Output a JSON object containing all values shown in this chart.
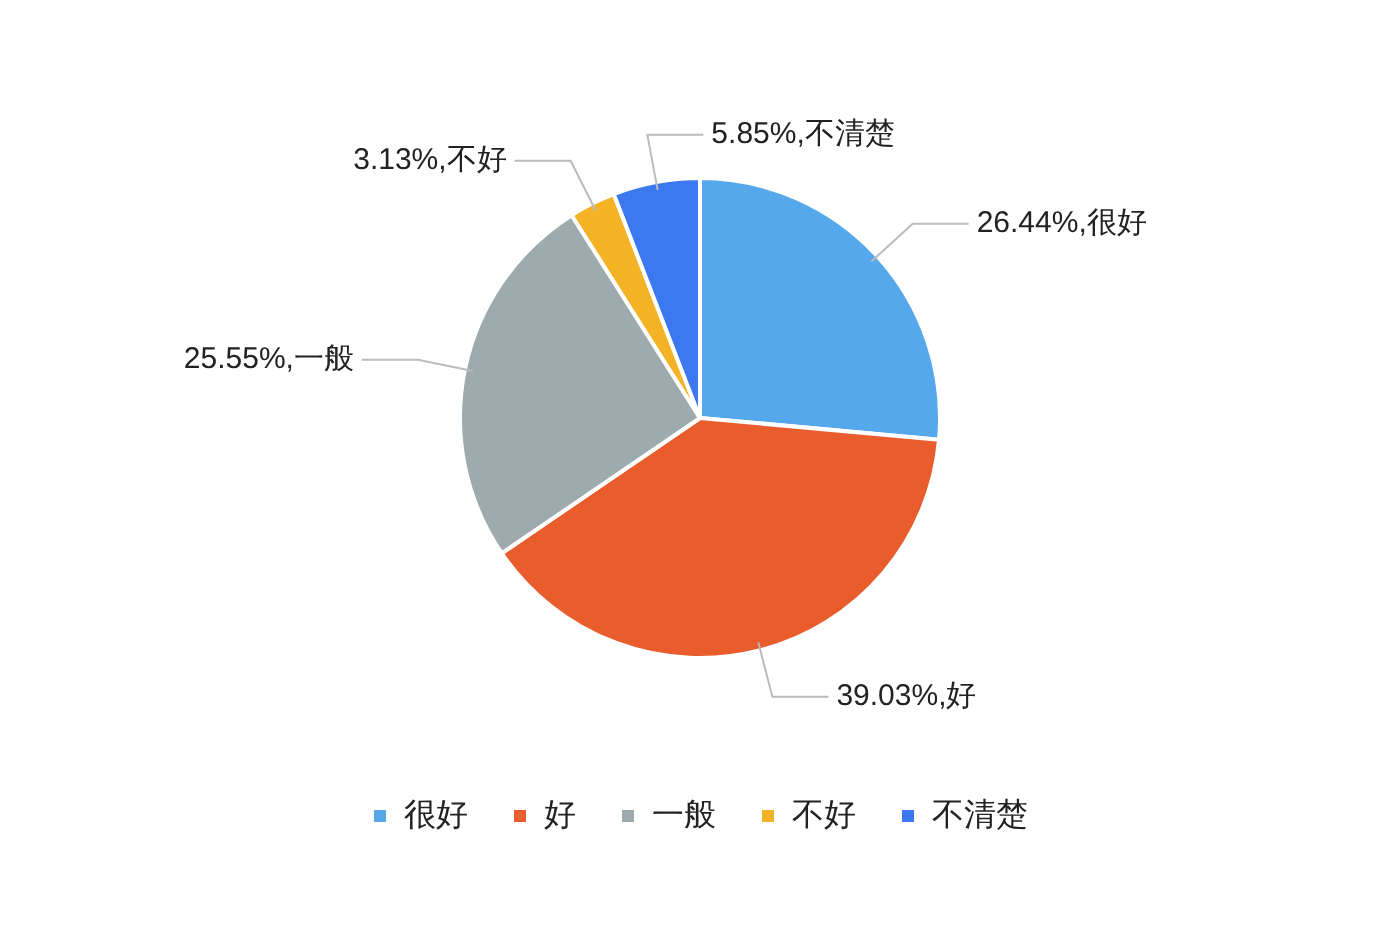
{
  "chart_data": {
    "type": "pie",
    "categories": [
      "很好",
      "好",
      "一般",
      "不好",
      "不清楚"
    ],
    "values": [
      26.44,
      39.03,
      25.55,
      3.13,
      5.85
    ],
    "colors": [
      "#56a8ec",
      "#e95d2d",
      "#9daaae",
      "#f4b324",
      "#3c78ef"
    ],
    "value_labels": [
      "26.44%,很好",
      "39.03%,好",
      "25.55%,一般",
      "3.13%,不好",
      "5.85%,不清楚"
    ],
    "legend": "bottom"
  }
}
